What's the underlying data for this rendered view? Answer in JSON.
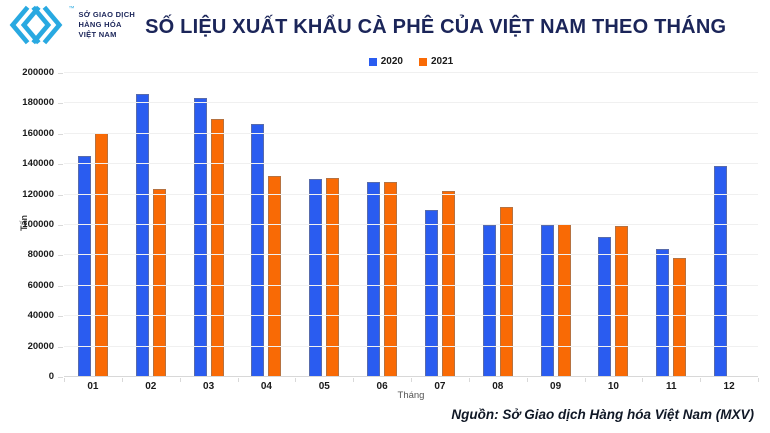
{
  "header": {
    "logo": {
      "line1": "SỞ GIAO DỊCH",
      "line2": "HÀNG HÓA",
      "line3": "VIỆT NAM",
      "trademark": "™",
      "mark_color": "#29A9E1",
      "text_color": "#1B2559"
    },
    "title": "SỐ LIỆU XUẤT KHẨU CÀ PHÊ CỦA VIỆT NAM THEO THÁNG"
  },
  "chart_data": {
    "type": "bar",
    "title": "SỐ LIỆU XUẤT KHẨU CÀ PHÊ CỦA VIỆT NAM THEO THÁNG",
    "categories": [
      "01",
      "02",
      "03",
      "04",
      "05",
      "06",
      "07",
      "08",
      "09",
      "10",
      "11",
      "12"
    ],
    "series": [
      {
        "name": "2020",
        "color": "#2A5CF0",
        "values": [
          145500,
          186000,
          183500,
          166500,
          130500,
          128000,
          110000,
          100000,
          100000,
          92000,
          84000,
          139000
        ]
      },
      {
        "name": "2021",
        "color": "#F96A05",
        "values": [
          160500,
          123500,
          169500,
          132500,
          131000,
          128500,
          122500,
          112000,
          100500,
          99500,
          78000,
          null
        ]
      }
    ],
    "xlabel": "Tháng",
    "ylabel": "Tấn",
    "ylim": [
      0,
      200000
    ],
    "ytick_step": 20000,
    "grid": true,
    "legend_position": "top-center"
  },
  "footer": {
    "source": "Nguồn: Sở Giao dịch Hàng hóa Việt Nam (MXV)"
  }
}
